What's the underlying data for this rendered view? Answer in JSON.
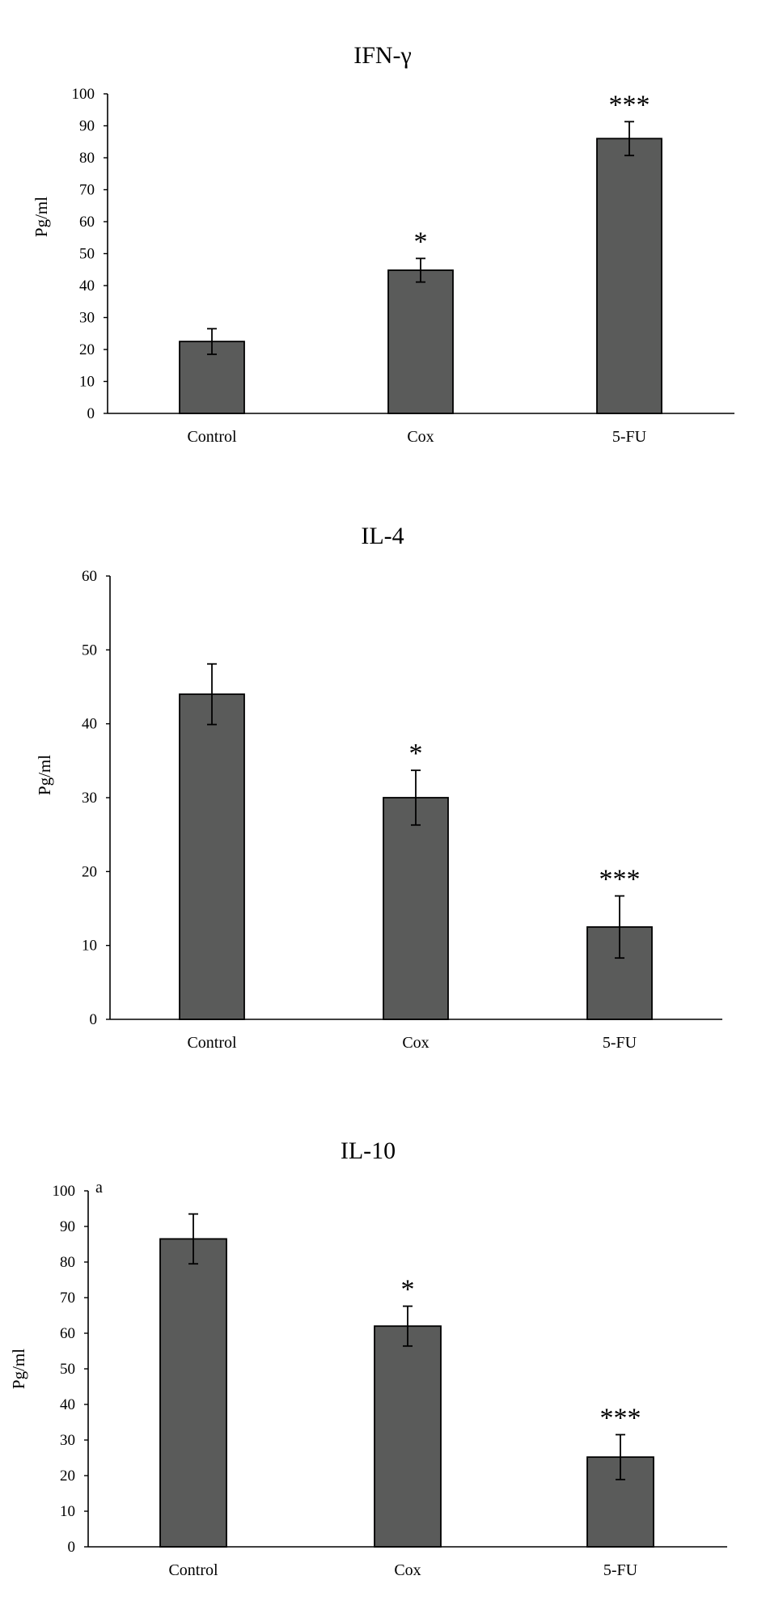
{
  "colors": {
    "bar": "#5a5b5a",
    "stroke": "#000000",
    "background": "#ffffff"
  },
  "chart_data": [
    {
      "type": "bar",
      "title": "IFN-γ",
      "ylabel": "Pg/ml",
      "xlabel": "",
      "annotation": "",
      "categories": [
        "Control",
        "Cox",
        "5-FU"
      ],
      "values": [
        22.5,
        44.8,
        86.0
      ],
      "errors": [
        4.0,
        3.7,
        5.3
      ],
      "significance": [
        "",
        "*",
        "***"
      ],
      "ylim": [
        0,
        100
      ],
      "yticks": [
        0,
        10,
        20,
        30,
        40,
        50,
        60,
        70,
        80,
        90,
        100
      ],
      "grid": false,
      "legend": "none"
    },
    {
      "type": "bar",
      "title": "IL-4",
      "ylabel": "Pg/ml",
      "xlabel": "",
      "annotation": "",
      "categories": [
        "Control",
        "Cox",
        "5-FU"
      ],
      "values": [
        44.0,
        30.0,
        12.5
      ],
      "errors": [
        4.1,
        3.7,
        4.2
      ],
      "significance": [
        "",
        "*",
        "***"
      ],
      "ylim": [
        0,
        60
      ],
      "yticks": [
        0,
        10,
        20,
        30,
        40,
        50,
        60
      ],
      "grid": false,
      "legend": "none"
    },
    {
      "type": "bar",
      "title": "IL-10",
      "ylabel": "Pg/ml",
      "xlabel": "",
      "annotation": "a",
      "categories": [
        "Control",
        "Cox",
        "5-FU"
      ],
      "values": [
        86.5,
        62.0,
        25.2
      ],
      "errors": [
        7.0,
        5.6,
        6.3
      ],
      "significance": [
        "",
        "*",
        "***"
      ],
      "ylim": [
        0,
        100
      ],
      "yticks": [
        0,
        10,
        20,
        30,
        40,
        50,
        60,
        70,
        80,
        90,
        100
      ],
      "grid": false,
      "legend": "none"
    }
  ]
}
